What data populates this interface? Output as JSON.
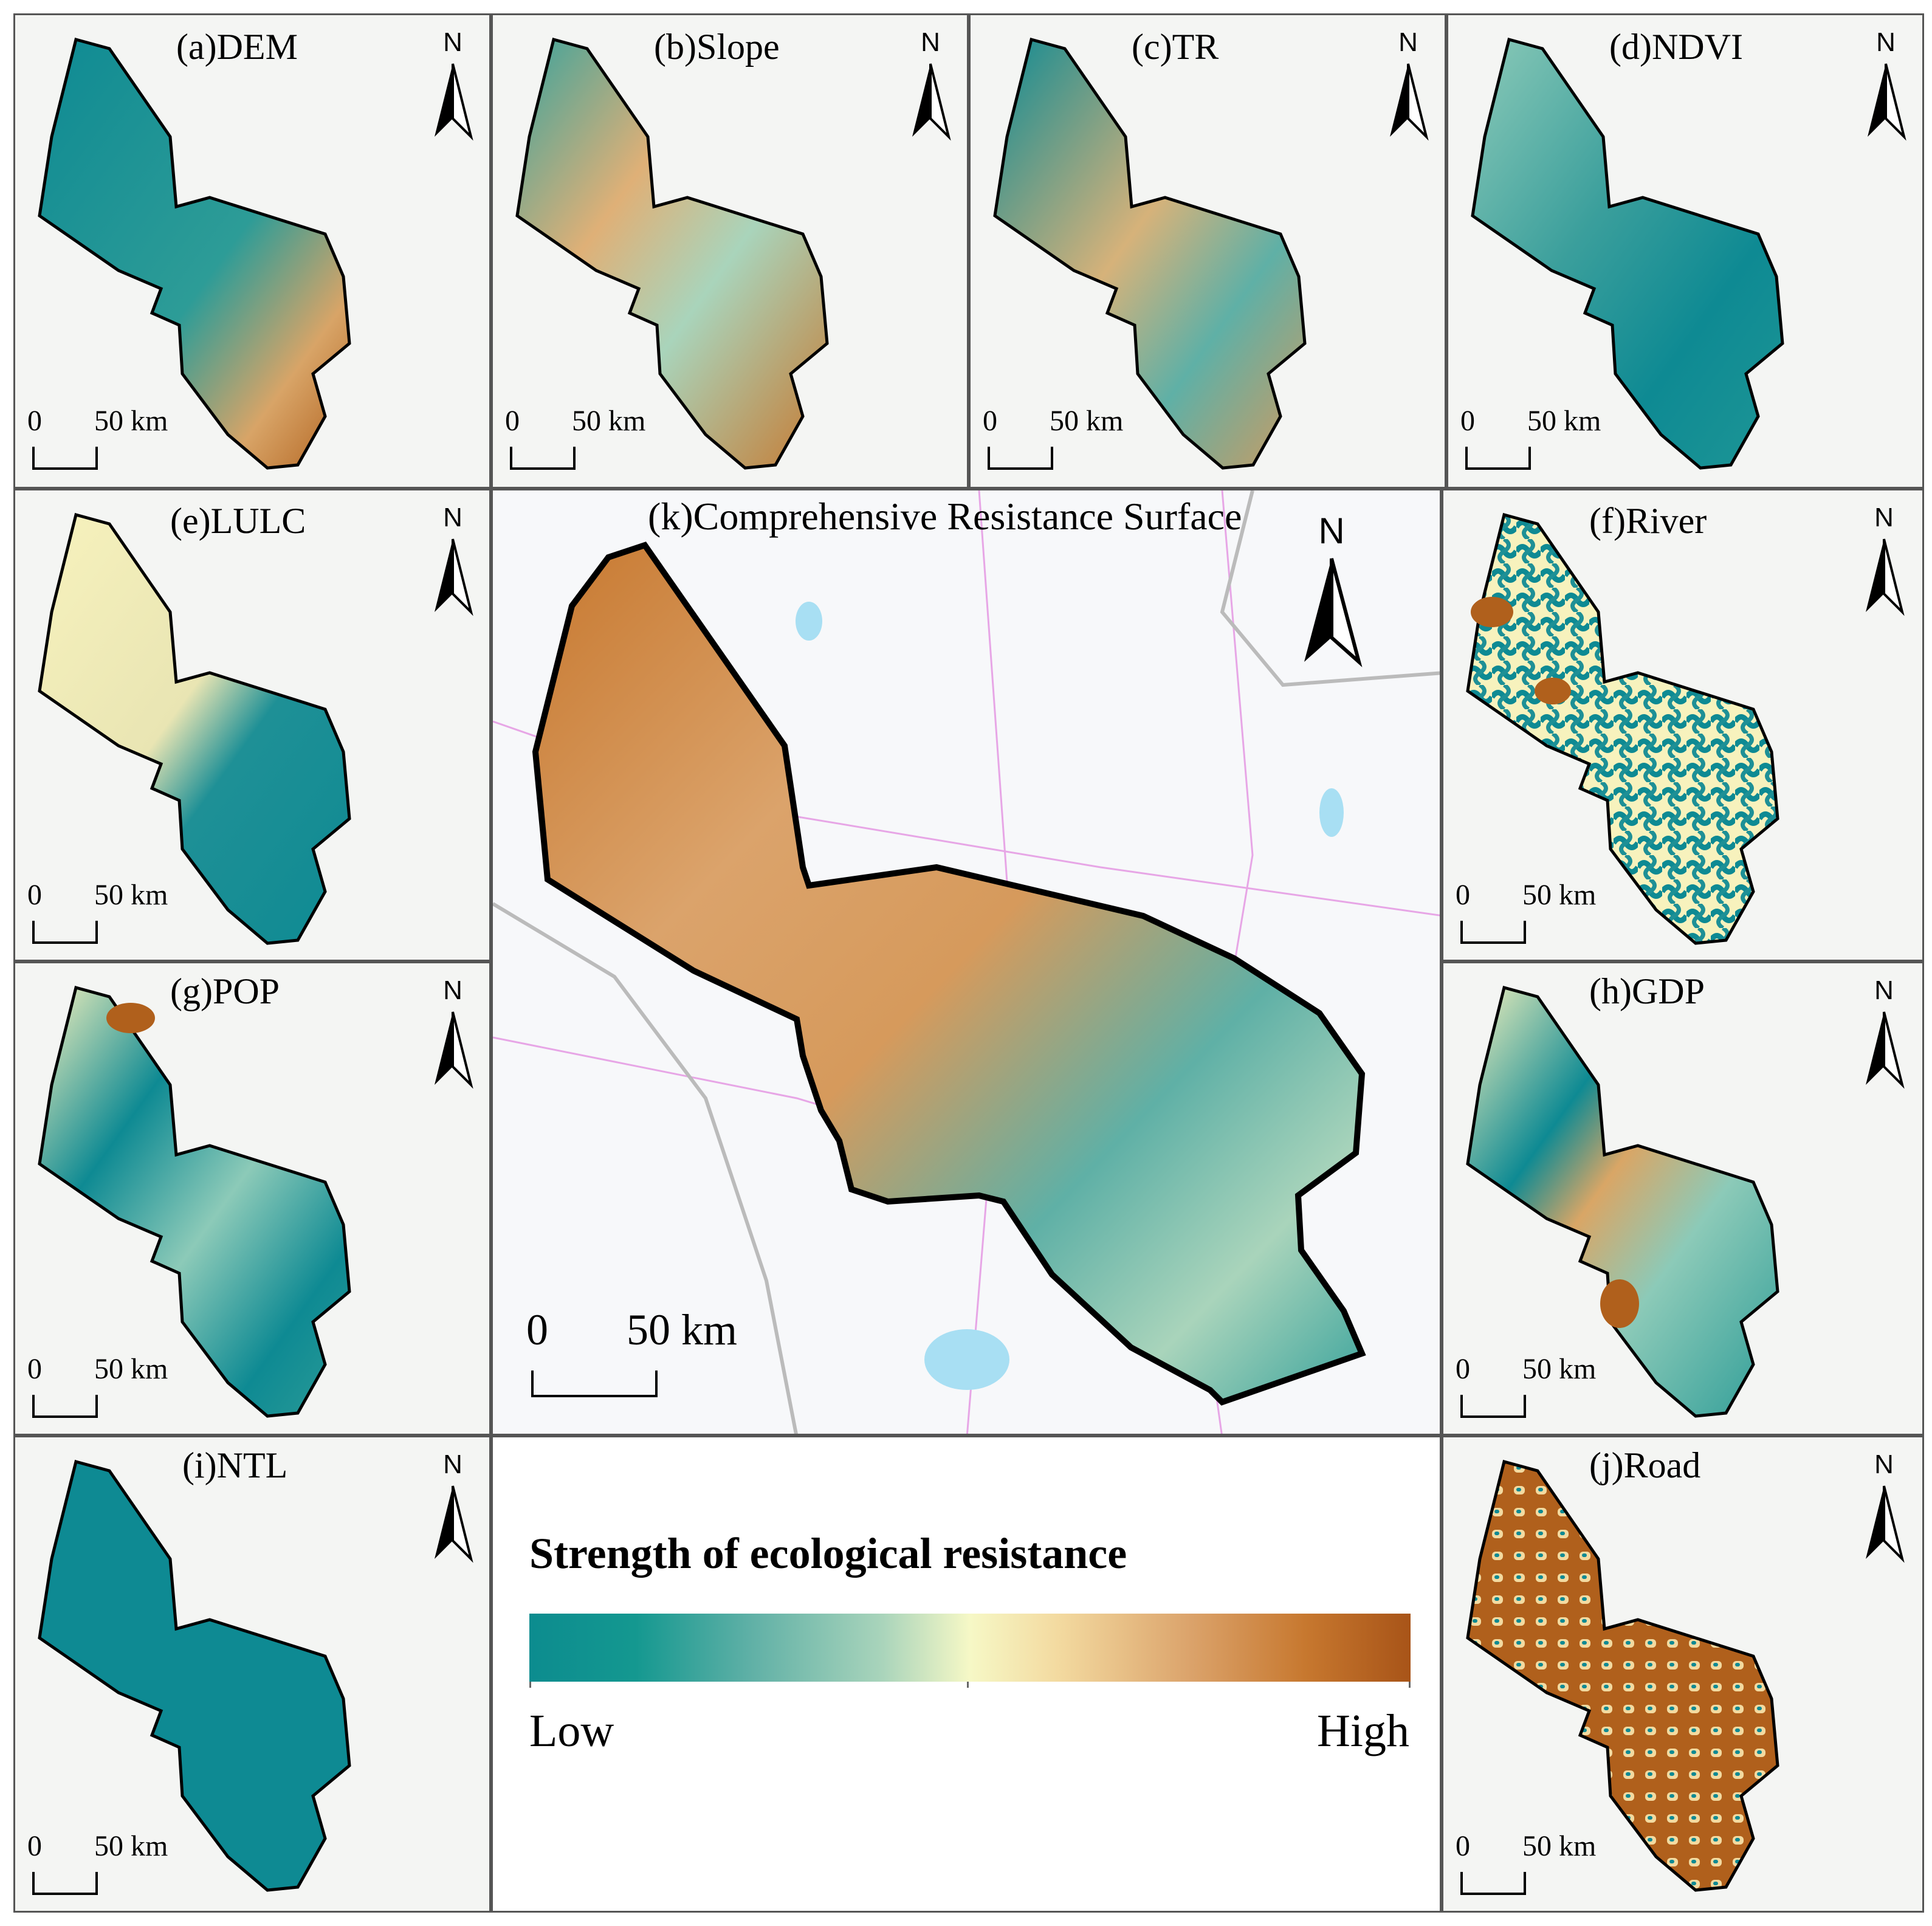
{
  "panels": {
    "a": {
      "title": "(a)DEM"
    },
    "b": {
      "title": "(b)Slope"
    },
    "c": {
      "title": "(c)TR"
    },
    "d": {
      "title": "(d)NDVI"
    },
    "e": {
      "title": "(e)LULC"
    },
    "f": {
      "title": "(f)River"
    },
    "g": {
      "title": "(g)POP"
    },
    "h": {
      "title": "(h)GDP"
    },
    "i": {
      "title": "(i)NTL"
    },
    "j": {
      "title": "(j)Road"
    },
    "k": {
      "title": "(k)Comprehensive Resistance Surface"
    }
  },
  "north_label": "N",
  "scale_bar": {
    "zero": "0",
    "distance": "50 km"
  },
  "legend": {
    "title": "Strength of ecological resistance",
    "low": "Low",
    "high": "High",
    "ramp_colors": [
      "#0c8c8f",
      "#5fb0a6",
      "#f6f8c6",
      "#dba36b",
      "#a85418"
    ]
  },
  "colors": {
    "teal": "#0e8a93",
    "pale_teal": "#8ccab8",
    "cream": "#f7f2bd",
    "tan": "#d9a666",
    "brown": "#b0601c",
    "outline": "#000000"
  }
}
